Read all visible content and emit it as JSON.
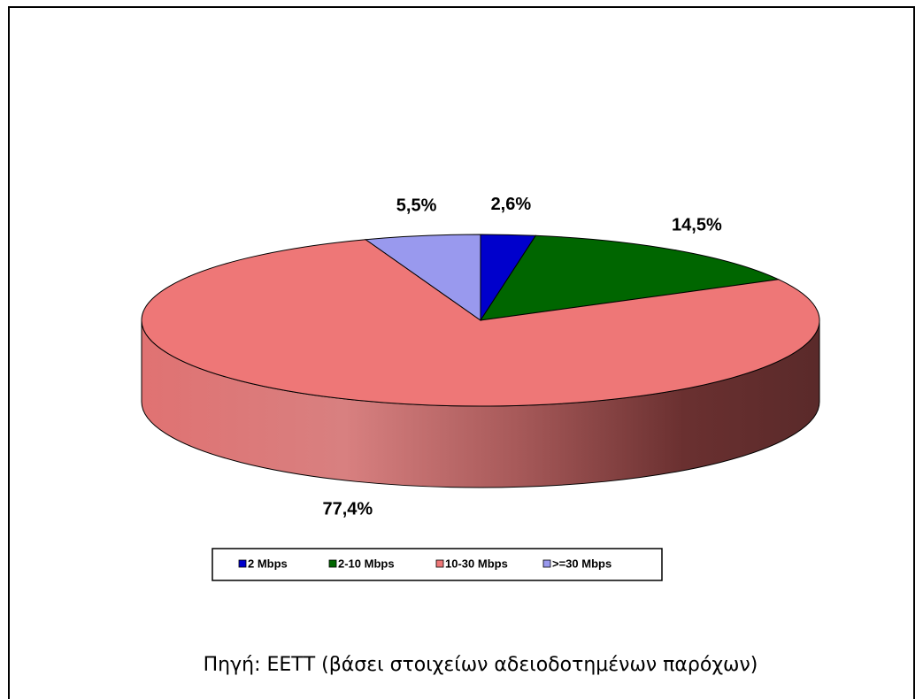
{
  "chart_data": {
    "type": "pie",
    "categories": [
      "2 Mbps",
      "2-10 Mbps",
      "10-30  Mbps",
      ">=30 Mbps"
    ],
    "values": [
      2.6,
      14.5,
      77.4,
      5.5
    ],
    "value_labels": [
      "2,6%",
      "14,5%",
      "77,4%",
      "5,5%"
    ],
    "colors": [
      "#0000cc",
      "#006600",
      "#ee7777",
      "#9999ee"
    ],
    "legend": "bottom",
    "source": "Πηγή: ΕΕΤΤ (βάσει στοιχείων αδειοδοτημένων παρόχων)"
  }
}
